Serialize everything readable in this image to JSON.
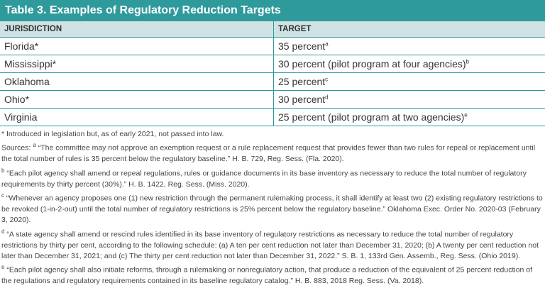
{
  "title": "Table 3. Examples of Regulatory Reduction Targets",
  "table": {
    "header": [
      "JURISDICTION",
      "TARGET"
    ],
    "rows": [
      {
        "jurisdiction": "Florida*",
        "target": "35 percent",
        "note": "a"
      },
      {
        "jurisdiction": "Mississippi*",
        "target": "30 percent (pilot program at four agencies)",
        "note": "b"
      },
      {
        "jurisdiction": "Oklahoma",
        "target": "25 percent",
        "note": "c"
      },
      {
        "jurisdiction": "Ohio*",
        "target": "30 percent",
        "note": "d"
      },
      {
        "jurisdiction": "Virginia",
        "target": "25 percent (pilot program at two agencies)",
        "note": "e"
      }
    ]
  },
  "footnotes": {
    "asterisk": "* Introduced in legislation but, as of early 2021, not passed into law.",
    "sources_label": "Sources:",
    "items": [
      {
        "marker": "a",
        "text": "“The committee may not approve an exemption request or a rule replacement request that provides fewer than two rules for repeal or replacement until the total number of rules is 35 percent below the regulatory baseline.” H. B. 729, Reg. Sess. (Fla. 2020)."
      },
      {
        "marker": "b",
        "text": "“Each pilot agency shall amend or repeal regulations, rules or guidance documents in its base inventory as necessary to reduce the total number of regulatory requirements by thirty percent (30%).” H. B. 1422, Reg. Sess. (Miss. 2020)."
      },
      {
        "marker": "c",
        "text": "“Whenever an agency proposes one (1) new restriction through the permanent rulemaking process, it shall identify at least two (2) existing regulatory restrictions to be revoked (1-in-2-out) until the total number of regulatory restrictions is 25% percent below the regulatory baseline.” Oklahoma Exec. Order No. 2020-03 (February 3, 2020)."
      },
      {
        "marker": "d",
        "text": "“A state agency shall amend or rescind rules identified in its base inventory of regulatory restrictions as necessary to reduce the total number of regulatory restrictions by thirty per cent, according to the following schedule: (a) A ten per cent reduction not later than December 31, 2020; (b) A twenty per cent reduction not later than December 31, 2021; and (c) The thirty per cent reduction not later than December 31, 2022.” S. B. 1, 133rd Gen. Assemb., Reg. Sess. (Ohio 2019)."
      },
      {
        "marker": "e",
        "text": "“Each pilot agency shall also initiate reforms, through a rulemaking or nonregulatory action, that produce a reduction of the equivalent of 25 percent reduction of the regulations and regulatory requirements contained in its baseline regulatory catalog.” H. B. 883, 2018 Reg. Sess. (Va. 2018)."
      }
    ]
  }
}
